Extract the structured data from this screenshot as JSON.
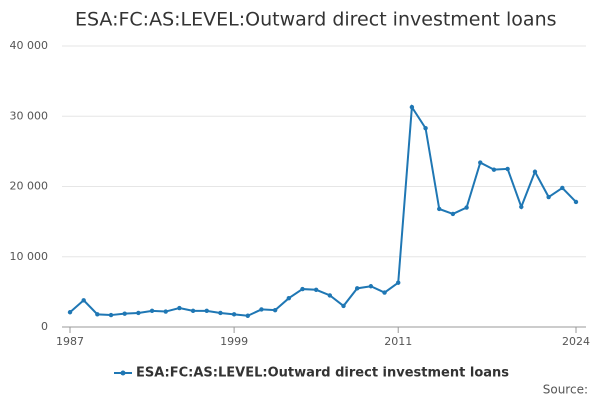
{
  "chart_data": {
    "type": "line",
    "title": "ESA:FC:AS:LEVEL:Outward direct investment loans",
    "x": [
      1987,
      1988,
      1989,
      1990,
      1991,
      1992,
      1993,
      1994,
      1995,
      1996,
      1997,
      1998,
      1999,
      2000,
      2001,
      2002,
      2003,
      2004,
      2005,
      2006,
      2007,
      2008,
      2009,
      2010,
      2011,
      2012,
      2013,
      2014,
      2015,
      2016,
      2017,
      2018,
      2019,
      2020,
      2021,
      2022,
      2023,
      2024
    ],
    "series": [
      {
        "name": "ESA:FC:AS:LEVEL:Outward direct investment loans",
        "color": "#1f77b4",
        "values": [
          2100,
          3800,
          1800,
          1700,
          1900,
          2000,
          2300,
          2200,
          2700,
          2300,
          2300,
          2000,
          1800,
          1600,
          2500,
          2400,
          4100,
          5400,
          5300,
          4500,
          3000,
          5500,
          5800,
          4900,
          6300,
          31300,
          28300,
          16800,
          16100,
          17000,
          23400,
          22400,
          22500,
          17100,
          22100,
          18500,
          19800,
          17800
        ]
      }
    ],
    "xlim": [
      1987,
      2024
    ],
    "xticks": [
      1987,
      1999,
      2011,
      2024
    ],
    "ylim": [
      0,
      40000
    ],
    "yticks": [
      0,
      {
        "value": 10000,
        "label": "10 000"
      },
      {
        "value": 20000,
        "label": "20 000"
      },
      {
        "value": 30000,
        "label": "30 000"
      },
      {
        "value": 40000,
        "label": "40 000"
      }
    ],
    "grid": true,
    "source": "Source:"
  }
}
